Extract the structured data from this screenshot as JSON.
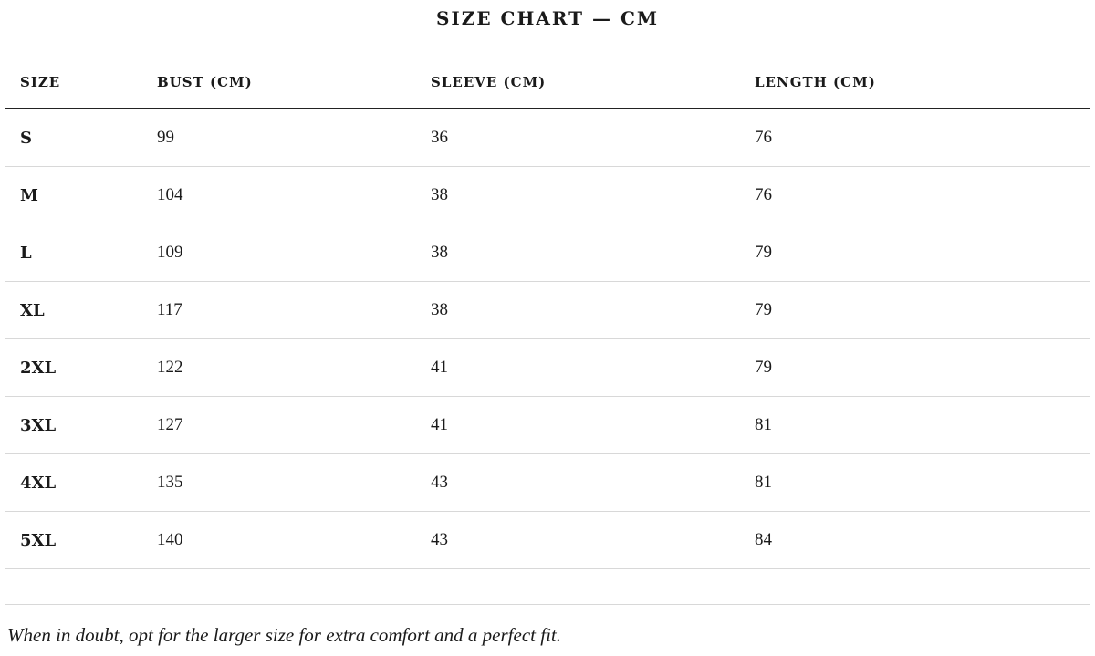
{
  "title": "SIZE CHART — CM",
  "table": {
    "headers": [
      "SIZE",
      "BUST (CM)",
      "SLEEVE (CM)",
      "LENGTH (CM)"
    ],
    "rows": [
      [
        "S",
        "99",
        "36",
        "76"
      ],
      [
        "M",
        "104",
        "38",
        "76"
      ],
      [
        "L",
        "109",
        "38",
        "79"
      ],
      [
        "XL",
        "117",
        "38",
        "79"
      ],
      [
        "2XL",
        "122",
        "41",
        "79"
      ],
      [
        "3XL",
        "127",
        "41",
        "81"
      ],
      [
        "4XL",
        "135",
        "43",
        "81"
      ],
      [
        "5XL",
        "140",
        "43",
        "84"
      ]
    ]
  },
  "note": "When in doubt, opt for the larger size for extra comfort and a perfect fit."
}
